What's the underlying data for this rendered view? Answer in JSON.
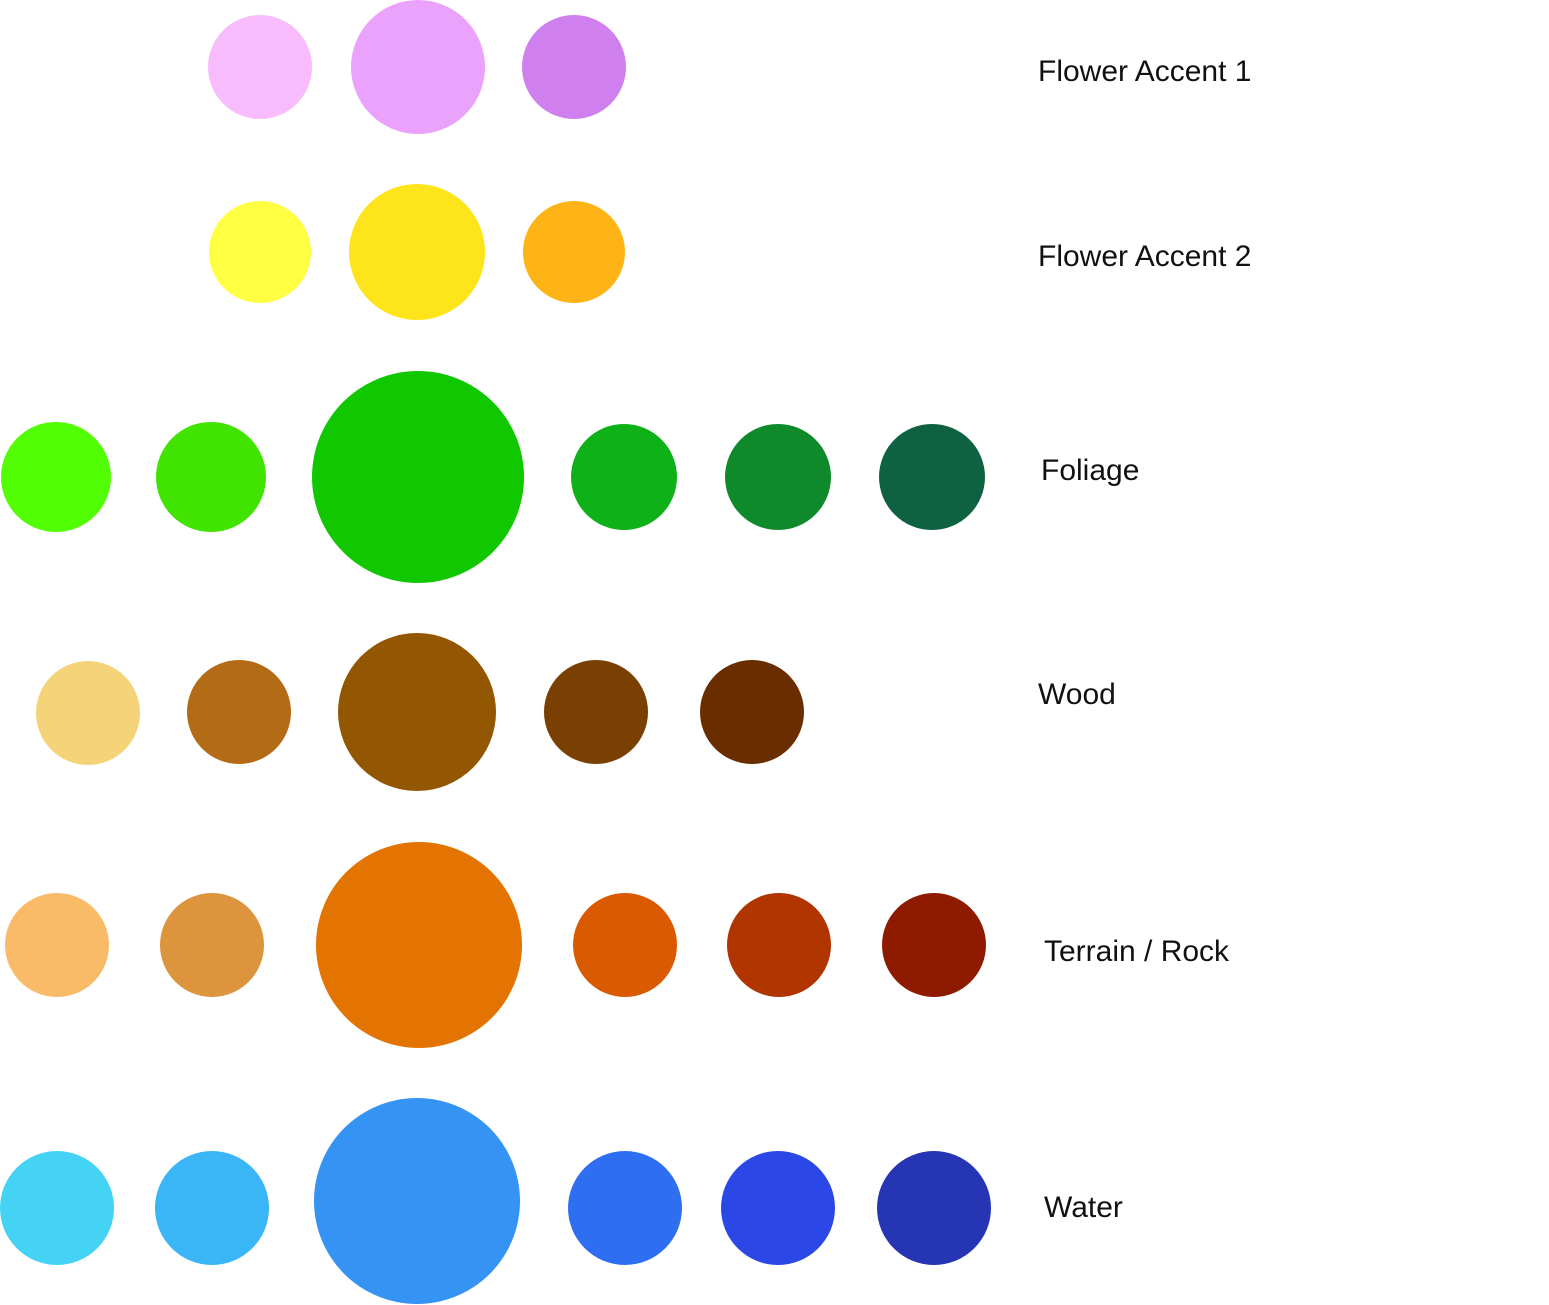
{
  "palettes": [
    {
      "label": "Flower Accent 1",
      "swatches": [
        {
          "color": "#f8bbfb"
        },
        {
          "color": "#eba2fc"
        },
        {
          "color": "#d080ee"
        }
      ]
    },
    {
      "label": "Flower Accent 2",
      "swatches": [
        {
          "color": "#ffff44"
        },
        {
          "color": "#fee51b"
        },
        {
          "color": "#feb417"
        }
      ]
    },
    {
      "label": "Foliage",
      "swatches": [
        {
          "color": "#52fe04"
        },
        {
          "color": "#41e300"
        },
        {
          "color": "#10c700"
        },
        {
          "color": "#0eb117"
        },
        {
          "color": "#0f8a2b"
        },
        {
          "color": "#0e6242"
        }
      ]
    },
    {
      "label": "Wood",
      "swatches": [
        {
          "color": "#f5d479"
        },
        {
          "color": "#b46b16"
        },
        {
          "color": "#935601"
        },
        {
          "color": "#7a3f02"
        },
        {
          "color": "#6a2d00"
        }
      ]
    },
    {
      "label": "Terrain / Rock",
      "swatches": [
        {
          "color": "#f9bb68"
        },
        {
          "color": "#dc943d"
        },
        {
          "color": "#e47401"
        },
        {
          "color": "#da5a01"
        },
        {
          "color": "#b13501"
        },
        {
          "color": "#8e1b00"
        }
      ]
    },
    {
      "label": "Water",
      "swatches": [
        {
          "color": "#45d3f5"
        },
        {
          "color": "#3ab5f5"
        },
        {
          "color": "#3593f3"
        },
        {
          "color": "#2e6ff1"
        },
        {
          "color": "#2b47e5"
        },
        {
          "color": "#2535b4"
        }
      ]
    }
  ]
}
